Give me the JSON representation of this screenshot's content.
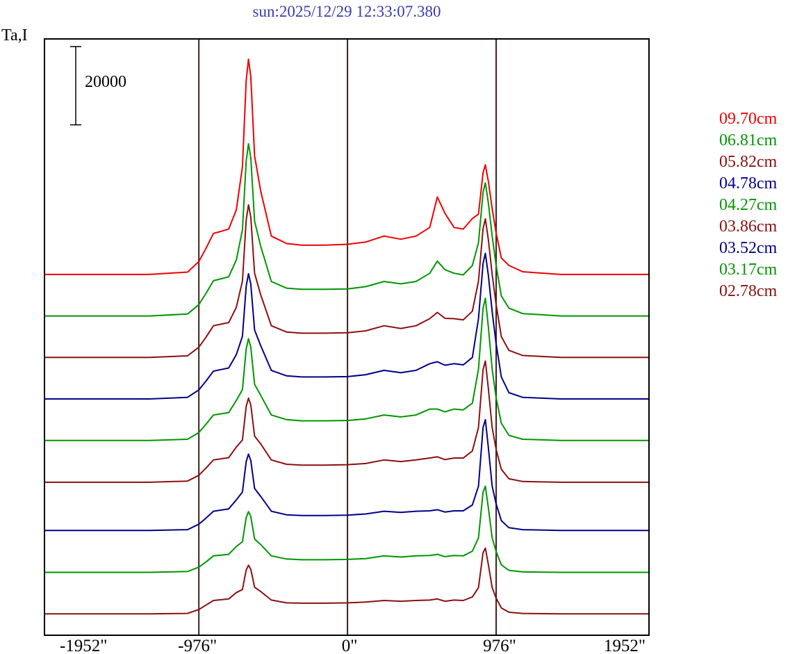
{
  "title": "sun:2025/12/29 12:33:07.380",
  "title_color": "#3a3aae",
  "y_axis_label": "Ta,I",
  "scale_bar": {
    "label": "20000",
    "value": 20000
  },
  "x_ticks": [
    {
      "value": -1952,
      "label": "-1952\""
    },
    {
      "value": -976,
      "label": "-976\""
    },
    {
      "value": 0,
      "label": "0\""
    },
    {
      "value": 976,
      "label": "976\""
    },
    {
      "value": 1952,
      "label": "1952\""
    }
  ],
  "colors": {
    "red": "#ee0000",
    "green": "#009600",
    "darkred": "#8b1010",
    "navy": "#000089",
    "vline": "#3f1f1f",
    "frame": "#000000"
  },
  "legend": [
    {
      "label": "09.70cm",
      "color": "#ee0000"
    },
    {
      "label": "06.81cm",
      "color": "#009600"
    },
    {
      "label": "05.82cm",
      "color": "#8b1010"
    },
    {
      "label": "04.78cm",
      "color": "#000089"
    },
    {
      "label": "04.27cm",
      "color": "#009600"
    },
    {
      "label": "03.86cm",
      "color": "#8b1010"
    },
    {
      "label": "03.52cm",
      "color": "#000089"
    },
    {
      "label": "03.17cm",
      "color": "#009600"
    },
    {
      "label": "02.78cm",
      "color": "#8b1010"
    }
  ],
  "chart_data": {
    "type": "line",
    "title": "sun:2025/12/29 12:33:07.380",
    "xlabel": "",
    "ylabel": "Ta,I",
    "xlim": [
      -1985,
      1975
    ],
    "ylim": [
      0,
      152000
    ],
    "grid": false,
    "legend_position": "right",
    "vlines": [
      -976,
      0,
      976
    ],
    "x": [
      -1985,
      -1300,
      -1050,
      -976,
      -930,
      -880,
      -830,
      -780,
      -730,
      -690,
      -665,
      -650,
      -635,
      -610,
      -570,
      -500,
      -400,
      -300,
      -150,
      0,
      120,
      240,
      350,
      450,
      540,
      590,
      640,
      700,
      760,
      820,
      860,
      890,
      905,
      925,
      950,
      976,
      1010,
      1060,
      1150,
      1400,
      1975
    ],
    "series": [
      {
        "name": "09.70cm",
        "color": "#ee0000",
        "offset": 92000,
        "values": [
          0,
          0,
          600,
          3300,
          6600,
          10500,
          11000,
          11600,
          16500,
          27500,
          49500,
          55000,
          50600,
          30300,
          21300,
          9800,
          7900,
          7500,
          7500,
          7700,
          8300,
          9800,
          9000,
          9800,
          12000,
          19800,
          15600,
          12000,
          11600,
          14300,
          15400,
          26000,
          28000,
          23800,
          16800,
          10600,
          4200,
          2300,
          700,
          0,
          0
        ]
      },
      {
        "name": "06.81cm",
        "color": "#009600",
        "offset": 81400,
        "values": [
          0,
          0,
          500,
          2900,
          5700,
          9000,
          9500,
          10000,
          14300,
          22000,
          39600,
          44000,
          40500,
          24200,
          17800,
          8800,
          7100,
          6800,
          6800,
          6900,
          7500,
          8800,
          8200,
          8800,
          10900,
          14000,
          11800,
          10900,
          10500,
          12900,
          18700,
          31600,
          34000,
          28900,
          20400,
          12900,
          5100,
          2000,
          600,
          0,
          0
        ]
      },
      {
        "name": "05.82cm",
        "color": "#8b1010",
        "offset": 70800,
        "values": [
          0,
          0,
          400,
          2600,
          5100,
          8100,
          8500,
          8900,
          12800,
          19500,
          35100,
          39000,
          35900,
          21500,
          16000,
          8100,
          6500,
          6200,
          6200,
          6300,
          6800,
          8100,
          7400,
          8100,
          9900,
          11500,
          10000,
          9900,
          9600,
          11800,
          19500,
          32900,
          35400,
          30100,
          21200,
          13500,
          5300,
          1800,
          500,
          0,
          0
        ]
      },
      {
        "name": "04.78cm",
        "color": "#000089",
        "offset": 60200,
        "values": [
          0,
          0,
          400,
          2300,
          4500,
          7100,
          7500,
          7900,
          11300,
          16000,
          28800,
          32000,
          29400,
          17600,
          13600,
          7300,
          5900,
          5600,
          5600,
          5700,
          6200,
          7300,
          6700,
          7300,
          9000,
          9500,
          8600,
          9000,
          8700,
          10600,
          20500,
          34600,
          37200,
          31600,
          22300,
          14100,
          5600,
          1600,
          400,
          0,
          0
        ]
      },
      {
        "name": "04.27cm",
        "color": "#009600",
        "offset": 49600,
        "values": [
          0,
          0,
          300,
          2000,
          4100,
          6500,
          6800,
          7100,
          10200,
          13000,
          23400,
          26000,
          23900,
          14300,
          11500,
          6500,
          5300,
          5000,
          5000,
          5100,
          5500,
          6500,
          6000,
          6500,
          8000,
          8000,
          7300,
          8000,
          7800,
          9500,
          18200,
          33800,
          36300,
          29000,
          18200,
          10900,
          4400,
          1300,
          300,
          0,
          0
        ]
      },
      {
        "name": "03.86cm",
        "color": "#8b1010",
        "offset": 38900,
        "values": [
          0,
          0,
          300,
          1800,
          3600,
          5700,
          6000,
          6300,
          9000,
          10800,
          19400,
          21500,
          19800,
          11800,
          9800,
          5700,
          4600,
          4400,
          4400,
          4500,
          4800,
          5700,
          5300,
          5700,
          6200,
          6500,
          5800,
          6200,
          6200,
          8000,
          14000,
          28800,
          31000,
          24000,
          14000,
          8400,
          3300,
          900,
          200,
          0,
          0
        ]
      },
      {
        "name": "03.52cm",
        "color": "#000089",
        "offset": 26600,
        "values": [
          0,
          0,
          200,
          1600,
          3100,
          4900,
          5200,
          5500,
          7800,
          9800,
          17600,
          19500,
          17900,
          10700,
          8700,
          4900,
          4000,
          3800,
          3800,
          3900,
          4200,
          4900,
          4600,
          4900,
          5000,
          5300,
          4700,
          5000,
          5000,
          6500,
          11300,
          26300,
          28300,
          21200,
          11300,
          6800,
          2500,
          700,
          200,
          0,
          0
        ]
      },
      {
        "name": "03.17cm",
        "color": "#009600",
        "offset": 15900,
        "values": [
          0,
          0,
          200,
          1300,
          2600,
          4200,
          4400,
          4600,
          6600,
          7800,
          14000,
          15500,
          14300,
          8500,
          7100,
          4200,
          3400,
          3200,
          3200,
          3300,
          3500,
          4200,
          3900,
          4200,
          4300,
          4600,
          4000,
          4300,
          4200,
          5400,
          8800,
          20500,
          22000,
          16500,
          8800,
          5300,
          1900,
          500,
          100,
          0,
          0
        ]
      },
      {
        "name": "02.78cm",
        "color": "#8b1010",
        "offset": 5300,
        "values": [
          0,
          0,
          100,
          1100,
          2200,
          3400,
          3600,
          3800,
          5400,
          6200,
          11200,
          12400,
          11400,
          6800,
          5700,
          3500,
          2800,
          2700,
          2700,
          2800,
          3000,
          3400,
          3200,
          3400,
          3500,
          3800,
          3200,
          3500,
          3400,
          4300,
          6700,
          15600,
          16800,
          12600,
          6700,
          4000,
          1500,
          400,
          100,
          0,
          0
        ]
      }
    ]
  }
}
